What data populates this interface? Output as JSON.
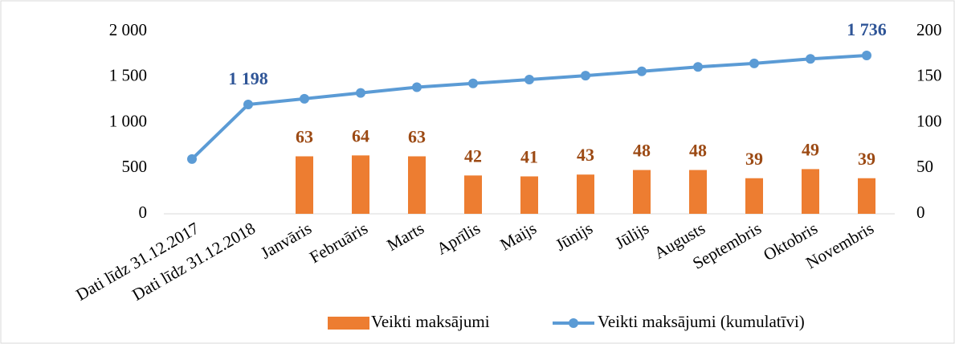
{
  "chart_data": {
    "type": "bar+line",
    "categories": [
      "Dati līdz 31.12.2017",
      "Dati līdz 31.12.2018",
      "Janvāris",
      "Februāris",
      "Marts",
      "Aprīlis",
      "Maijs",
      "Jūnijs",
      "Jūlijs",
      "Augusts",
      "Septembris",
      "Oktobris",
      "Novembris"
    ],
    "series": [
      {
        "name": "Veikti maksājumi",
        "type": "bar",
        "axis": "y2",
        "color": "#ed7d31",
        "label_color": "#9c4a14",
        "values": [
          null,
          null,
          63,
          64,
          63,
          42,
          41,
          43,
          48,
          48,
          39,
          49,
          39
        ]
      },
      {
        "name": "Veikti maksājumi (kumulatīvi)",
        "type": "line",
        "axis": "y",
        "color": "#5b9bd5",
        "label_color": "#2f5597",
        "values": [
          600,
          1198,
          1261,
          1325,
          1388,
          1430,
          1471,
          1514,
          1562,
          1610,
          1649,
          1698,
          1736
        ],
        "value_labels": [
          null,
          "1 198",
          null,
          null,
          null,
          null,
          null,
          null,
          null,
          null,
          null,
          null,
          "1 736"
        ]
      }
    ],
    "ylim": [
      0,
      2000
    ],
    "yticks": [
      0,
      500,
      {
        "value": 1000,
        "label": "1 000"
      },
      {
        "value": 1500,
        "label": "1 500"
      },
      {
        "value": 2000,
        "label": "2 000"
      }
    ],
    "y2lim": [
      0,
      200
    ],
    "y2ticks": [
      0,
      50,
      100,
      150,
      200
    ],
    "legend": "bottom"
  }
}
